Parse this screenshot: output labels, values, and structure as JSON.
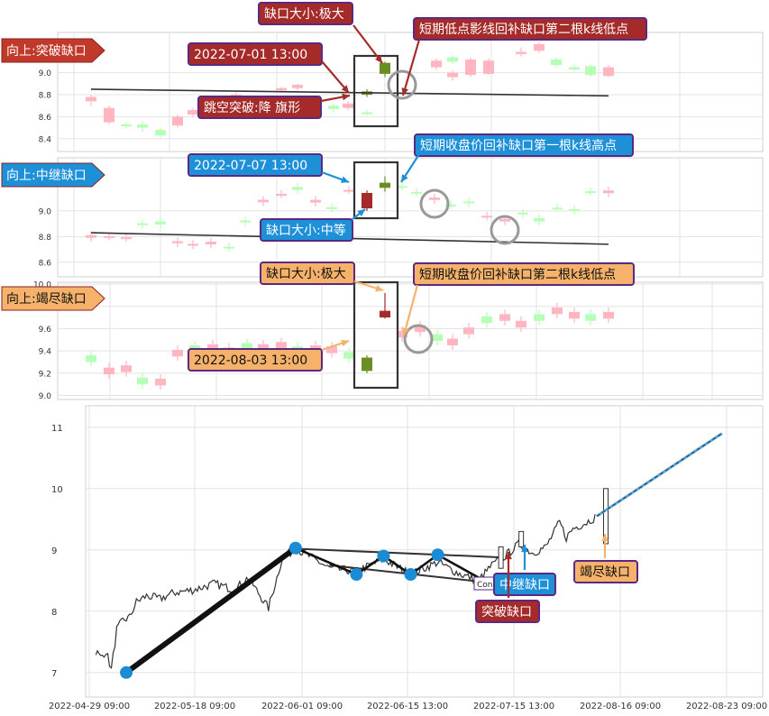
{
  "chart_data": [
    {
      "panel": "breakout",
      "type": "candlestick",
      "tag_label": "向上:突破缺口",
      "ylim": [
        8.3,
        9.35
      ],
      "yticks": [
        "8.4",
        "8.6",
        "8.8",
        "9.0"
      ],
      "trendline": [
        [
          0,
          8.85
        ],
        [
          54,
          8.79
        ]
      ],
      "candles": [
        [
          0,
          8.74,
          8.78,
          8.7,
          8.8
        ],
        [
          1,
          8.55,
          8.68,
          8.53,
          8.7
        ],
        [
          2,
          8.53,
          8.52,
          8.49,
          8.55
        ],
        [
          3,
          8.53,
          8.5,
          8.46,
          8.56
        ],
        [
          4,
          8.48,
          8.43,
          8.41,
          8.5
        ],
        [
          5,
          8.52,
          8.6,
          8.5,
          8.62
        ],
        [
          6,
          8.62,
          8.66,
          8.6,
          8.68
        ],
        [
          7,
          8.66,
          8.71,
          8.64,
          8.73
        ],
        [
          8,
          8.73,
          8.77,
          8.71,
          8.79
        ],
        [
          9,
          8.78,
          8.8,
          8.76,
          8.82
        ],
        [
          10,
          8.84,
          8.86,
          8.82,
          8.87
        ],
        [
          11,
          8.86,
          8.89,
          8.84,
          8.9
        ],
        [
          12,
          8.75,
          8.73,
          8.7,
          8.77
        ],
        [
          13,
          8.7,
          8.67,
          8.64,
          8.72
        ],
        [
          14,
          8.68,
          8.72,
          8.66,
          8.74
        ],
        [
          15,
          8.64,
          8.63,
          8.61,
          8.66
        ],
        [
          16,
          9.09,
          8.99,
          8.96,
          9.1
        ],
        [
          17,
          8.83,
          8.8,
          8.78,
          8.85
        ],
        [
          18,
          9.05,
          9.11,
          9.03,
          9.13
        ],
        [
          19,
          9.14,
          9.1,
          9.08,
          9.16
        ],
        [
          20,
          8.96,
          9.0,
          8.93,
          9.02
        ],
        [
          21,
          8.98,
          9.12,
          8.96,
          9.14
        ],
        [
          22,
          9.04,
          9.02,
          9.0,
          9.06
        ],
        [
          23,
          8.99,
          9.11,
          8.98,
          9.13
        ],
        [
          24,
          9.17,
          9.19,
          9.15,
          9.23
        ],
        [
          25,
          9.2,
          9.26,
          9.18,
          9.28
        ],
        [
          26,
          9.12,
          9.07,
          9.05,
          9.14
        ],
        [
          27,
          9.05,
          9.03,
          9.01,
          9.07
        ],
        [
          28,
          9.06,
          8.98,
          8.96,
          9.08
        ],
        [
          29,
          8.97,
          9.05,
          8.96,
          9.07
        ]
      ],
      "gap_box": [
        "2022-07-01 13:00",
        "gap"
      ],
      "annotations": [
        {
          "id": "size",
          "text": "缺口大小:极大"
        },
        {
          "id": "time",
          "text": "2022-07-01 13:00"
        },
        {
          "id": "pattern",
          "text": "跳空突破:降 旗形"
        },
        {
          "id": "note",
          "text": "短期低点影线回补缺口第二根k线低点"
        }
      ]
    },
    {
      "panel": "runaway",
      "type": "candlestick",
      "tag_label": "向上:中继缺口",
      "ylim": [
        8.5,
        9.4
      ],
      "yticks": [
        "8.6",
        "8.8",
        "9.0"
      ],
      "trendline": [
        [
          0,
          8.83
        ],
        [
          54,
          8.74
        ]
      ],
      "annotations": [
        {
          "id": "time",
          "text": "2022-07-07 13:00"
        },
        {
          "id": "size",
          "text": "缺口大小:中等"
        },
        {
          "id": "note",
          "text": "短期收盘价回补缺口第一根k线高点"
        }
      ]
    },
    {
      "panel": "exhaustion",
      "type": "candlestick",
      "tag_label": "向上:竭尽缺口",
      "ylim": [
        8.98,
        10.0
      ],
      "yticks": [
        "9.0",
        "9.2",
        "9.4",
        "9.6",
        "9.8",
        "10.0"
      ],
      "annotations": [
        {
          "id": "size",
          "text": "缺口大小:极大"
        },
        {
          "id": "time",
          "text": "2022-08-03 13:00"
        },
        {
          "id": "note",
          "text": "短期收盘价回补缺口第二根k线低点"
        }
      ]
    },
    {
      "panel": "overview",
      "type": "line",
      "ylim": [
        6.6,
        11.35
      ],
      "yticks": [
        "7",
        "8",
        "9",
        "10",
        "11"
      ],
      "xticks": [
        "2022-04-29 09:00",
        "2022-05-18 09:00",
        "2022-06-01 09:00",
        "2022-06-15 13:00",
        "2022-07-15 13:00",
        "2022-08-16 09:00",
        "2022-08-23 09:00"
      ],
      "xlim": [
        0,
        100
      ],
      "projection": [
        [
          75.5,
          9.55
        ],
        [
          94,
          10.9
        ]
      ],
      "impulse": [
        [
          6,
          7.0
        ],
        [
          31,
          9.03
        ]
      ],
      "pattern_points": [
        [
          31,
          9.03
        ],
        [
          40,
          8.6
        ],
        [
          44,
          8.9
        ],
        [
          48,
          8.6
        ],
        [
          52,
          8.92
        ],
        [
          58,
          8.55
        ]
      ],
      "labels": [
        {
          "id": "breakout",
          "text": "突破缺口"
        },
        {
          "id": "runaway",
          "text": "中继缺口"
        },
        {
          "id": "exhaustion",
          "text": "竭尽缺口"
        },
        {
          "id": "cont",
          "text": "Con"
        }
      ]
    }
  ],
  "colors": {
    "up_light": "#ffb6c1",
    "down_light": "#b6ffb6",
    "up_dark": "#a52a2a",
    "down_dark": "#6b8e23",
    "breakout_tag": "#c0392b",
    "runaway_tag": "#1e90d8",
    "exhaustion_tag": "#f6b26b",
    "trend": "#333333",
    "pattern_dot": "#1c8bd6",
    "projection": "#5aa9dd"
  }
}
